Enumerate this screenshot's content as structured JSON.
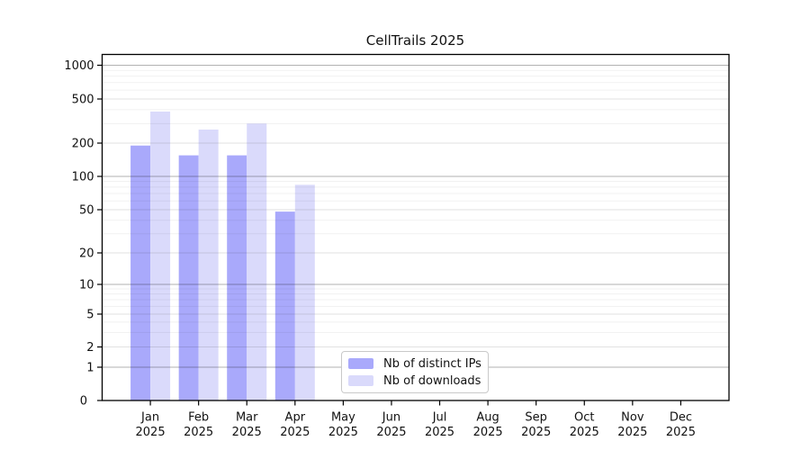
{
  "title": "CellTrails 2025",
  "legend": {
    "items": [
      {
        "label": "Nb of distinct IPs",
        "color": "#a9a9fb"
      },
      {
        "label": "Nb of downloads",
        "color": "#dadafb"
      }
    ]
  },
  "chart_data": {
    "type": "bar",
    "title": "CellTrails 2025",
    "yscale": "symlog (linear 0 to 1, logarithmic above 1)",
    "categories": [
      "Jan 2025",
      "Feb 2025",
      "Mar 2025",
      "Apr 2025",
      "May 2025",
      "Jun 2025",
      "Jul 2025",
      "Aug 2025",
      "Sep 2025",
      "Oct 2025",
      "Nov 2025",
      "Dec 2025"
    ],
    "series": [
      {
        "name": "Nb of distinct IPs",
        "color": "#a9a9fb",
        "values": [
          190,
          155,
          155,
          48,
          0,
          0,
          0,
          0,
          0,
          0,
          0,
          0
        ]
      },
      {
        "name": "Nb of downloads",
        "color": "#dadafb",
        "values": [
          385,
          265,
          300,
          84,
          0,
          0,
          0,
          0,
          0,
          0,
          0,
          0
        ]
      }
    ],
    "y_ticks": [
      0,
      1,
      2,
      5,
      10,
      20,
      50,
      100,
      200,
      500,
      1000
    ],
    "y_major_gridlines": [
      1,
      10,
      100,
      1000
    ],
    "y_minor_gridlines_labeled": [
      2,
      5,
      20,
      50,
      200,
      500
    ],
    "ylim": [
      0,
      1275
    ],
    "xlabel": "",
    "ylabel": "",
    "grid": "horizontal major + log minor, drawn above bars",
    "legend_position": "inside plot, lower center"
  }
}
